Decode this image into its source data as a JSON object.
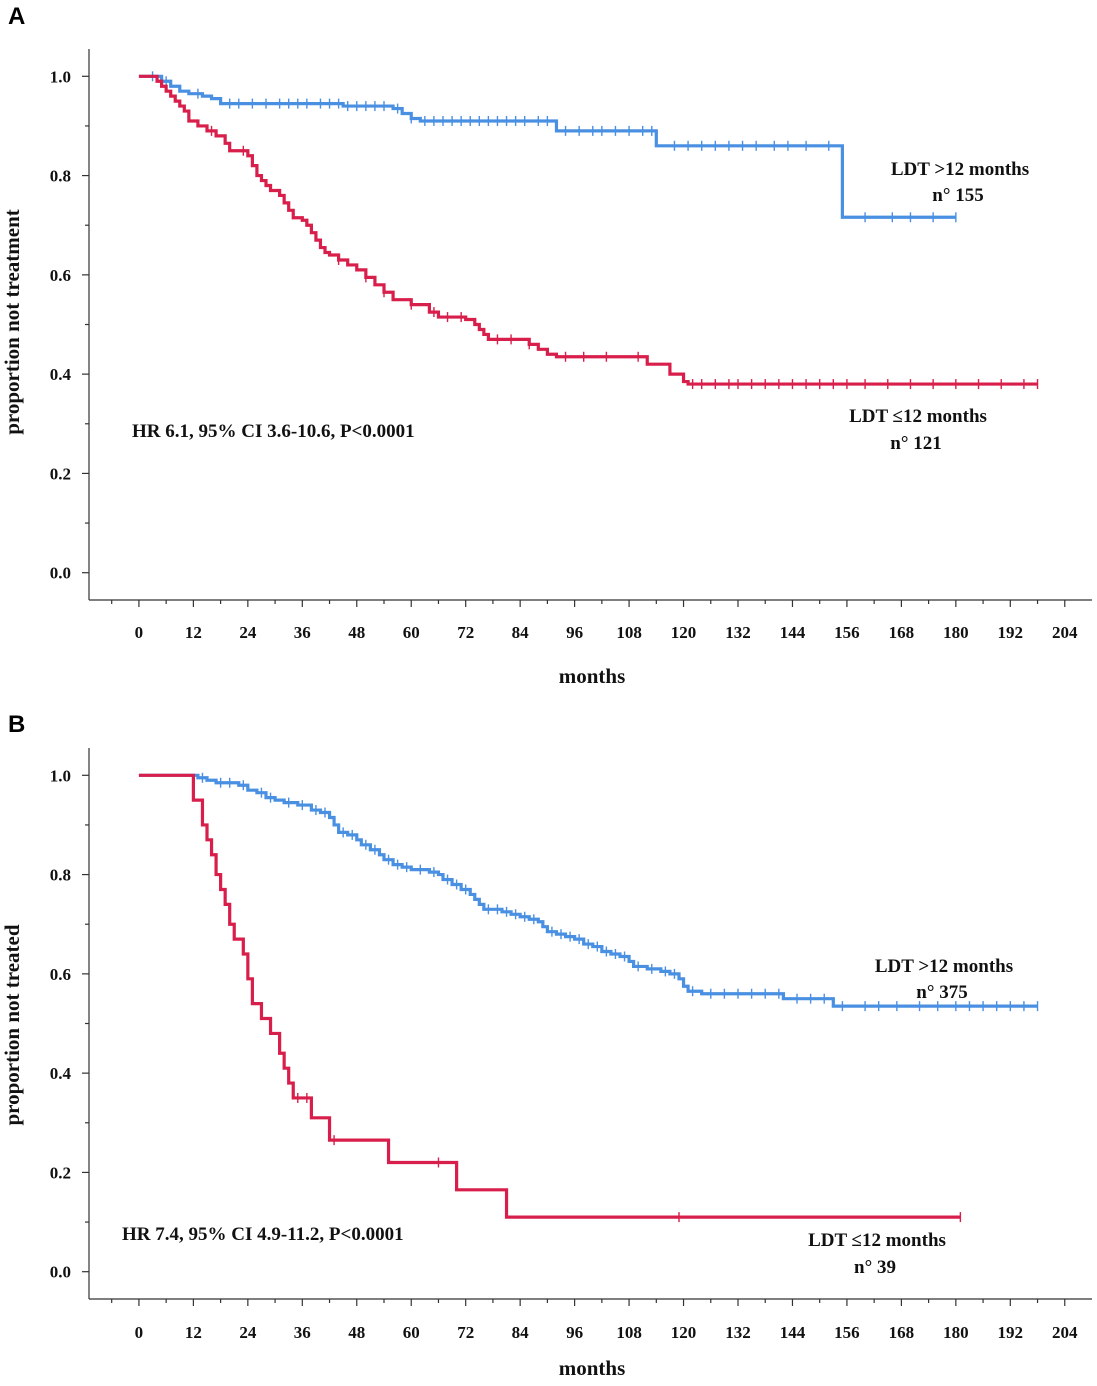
{
  "chart_data": [
    {
      "panel": "A",
      "type": "line",
      "subtype": "kaplan-meier",
      "xlabel": "months",
      "ylabel": "proportion not treatment",
      "xticks": [
        0,
        12,
        24,
        36,
        48,
        60,
        72,
        84,
        96,
        108,
        120,
        132,
        144,
        156,
        168,
        180,
        192,
        204
      ],
      "yticks": [
        "0.0",
        "0.2",
        "0.4",
        "0.6",
        "0.8",
        "1.0"
      ],
      "xlim": [
        -11,
        210
      ],
      "ylim": [
        -0.055,
        1.055
      ],
      "annotation": "HR 6.1, 95% CI 3.6-10.6, P<0.0001",
      "series": [
        {
          "name": "LDT >12 months",
          "label_lines": [
            "LDT >12 months",
            "n° 155"
          ],
          "color": "#4a90e2",
          "steps": [
            [
              0,
              1.0
            ],
            [
              5,
              0.99
            ],
            [
              7,
              0.98
            ],
            [
              9,
              0.97
            ],
            [
              11,
              0.965
            ],
            [
              14,
              0.96
            ],
            [
              16,
              0.955
            ],
            [
              18,
              0.945
            ],
            [
              45,
              0.94
            ],
            [
              56,
              0.935
            ],
            [
              58,
              0.925
            ],
            [
              60,
              0.915
            ],
            [
              62,
              0.91
            ],
            [
              92,
              0.89
            ],
            [
              114,
              0.86
            ],
            [
              155,
              0.716
            ],
            [
              180,
              0.716
            ]
          ],
          "censors": [
            3,
            6,
            13,
            20,
            22,
            25,
            28,
            31,
            33,
            35,
            37,
            40,
            42,
            44,
            46,
            48,
            50,
            52,
            54,
            57,
            60,
            63,
            65,
            67,
            69,
            71,
            73,
            75,
            77,
            79,
            81,
            83,
            85,
            88,
            90,
            94,
            97,
            100,
            102,
            105,
            108,
            111,
            113,
            118,
            121,
            124,
            127,
            130,
            133,
            136,
            140,
            143,
            147,
            152,
            160,
            166,
            170,
            175,
            180
          ]
        },
        {
          "name": "LDT ≤12 months",
          "label_lines": [
            "LDT ≤12 months",
            "n° 121"
          ],
          "color": "#d81e4a",
          "steps": [
            [
              0,
              1.0
            ],
            [
              4,
              0.99
            ],
            [
              5,
              0.98
            ],
            [
              6,
              0.97
            ],
            [
              7,
              0.96
            ],
            [
              8,
              0.95
            ],
            [
              9,
              0.94
            ],
            [
              10,
              0.93
            ],
            [
              11,
              0.91
            ],
            [
              13,
              0.9
            ],
            [
              15,
              0.89
            ],
            [
              17,
              0.88
            ],
            [
              19,
              0.865
            ],
            [
              20,
              0.85
            ],
            [
              24,
              0.84
            ],
            [
              25,
              0.82
            ],
            [
              26,
              0.8
            ],
            [
              27,
              0.79
            ],
            [
              28,
              0.78
            ],
            [
              29,
              0.77
            ],
            [
              31,
              0.76
            ],
            [
              32,
              0.745
            ],
            [
              33,
              0.73
            ],
            [
              34,
              0.715
            ],
            [
              36,
              0.71
            ],
            [
              37,
              0.7
            ],
            [
              38,
              0.685
            ],
            [
              39,
              0.67
            ],
            [
              40,
              0.655
            ],
            [
              41,
              0.645
            ],
            [
              42,
              0.64
            ],
            [
              44,
              0.63
            ],
            [
              46,
              0.62
            ],
            [
              48,
              0.61
            ],
            [
              50,
              0.595
            ],
            [
              52,
              0.58
            ],
            [
              54,
              0.565
            ],
            [
              56,
              0.55
            ],
            [
              60,
              0.54
            ],
            [
              64,
              0.525
            ],
            [
              66,
              0.515
            ],
            [
              72,
              0.51
            ],
            [
              74,
              0.5
            ],
            [
              75,
              0.49
            ],
            [
              76,
              0.48
            ],
            [
              77,
              0.47
            ],
            [
              86,
              0.46
            ],
            [
              88,
              0.45
            ],
            [
              90,
              0.44
            ],
            [
              92,
              0.435
            ],
            [
              112,
              0.42
            ],
            [
              117,
              0.4
            ],
            [
              120,
              0.385
            ],
            [
              121,
              0.38
            ],
            [
              198,
              0.38
            ]
          ],
          "censors": [
            16,
            23,
            44,
            50,
            54,
            60,
            65,
            68,
            71,
            79,
            82,
            86,
            94,
            98,
            103,
            110,
            122,
            124,
            127,
            130,
            132,
            135,
            138,
            141,
            144,
            147,
            150,
            153,
            156,
            160,
            165,
            170,
            175,
            180,
            185,
            190,
            195,
            198
          ]
        }
      ]
    },
    {
      "panel": "B",
      "type": "line",
      "subtype": "kaplan-meier",
      "xlabel": "months",
      "ylabel": "proportion not treated",
      "xticks": [
        0,
        12,
        24,
        36,
        48,
        60,
        72,
        84,
        96,
        108,
        120,
        132,
        144,
        156,
        168,
        180,
        192,
        204
      ],
      "yticks": [
        "0.0",
        "0.2",
        "0.4",
        "0.6",
        "0.8",
        "1.0"
      ],
      "xlim": [
        -11,
        210
      ],
      "ylim": [
        -0.055,
        1.055
      ],
      "annotation": "HR 7.4, 95% CI 4.9-11.2, P<0.0001",
      "series": [
        {
          "name": "LDT >12 months",
          "label_lines": [
            "LDT >12 months",
            "n° 375"
          ],
          "color": "#4a90e2",
          "steps": [
            [
              0,
              1.0
            ],
            [
              13,
              0.995
            ],
            [
              15,
              0.99
            ],
            [
              17,
              0.985
            ],
            [
              22,
              0.98
            ],
            [
              24,
              0.97
            ],
            [
              26,
              0.965
            ],
            [
              28,
              0.955
            ],
            [
              30,
              0.95
            ],
            [
              32,
              0.945
            ],
            [
              35,
              0.94
            ],
            [
              38,
              0.93
            ],
            [
              40,
              0.925
            ],
            [
              42,
              0.915
            ],
            [
              43,
              0.9
            ],
            [
              44,
              0.885
            ],
            [
              46,
              0.88
            ],
            [
              48,
              0.87
            ],
            [
              49,
              0.86
            ],
            [
              51,
              0.85
            ],
            [
              53,
              0.84
            ],
            [
              54,
              0.83
            ],
            [
              56,
              0.82
            ],
            [
              58,
              0.815
            ],
            [
              60,
              0.81
            ],
            [
              64,
              0.805
            ],
            [
              66,
              0.8
            ],
            [
              67,
              0.79
            ],
            [
              69,
              0.78
            ],
            [
              71,
              0.77
            ],
            [
              73,
              0.76
            ],
            [
              74,
              0.75
            ],
            [
              75,
              0.74
            ],
            [
              76,
              0.73
            ],
            [
              80,
              0.725
            ],
            [
              82,
              0.72
            ],
            [
              84,
              0.715
            ],
            [
              86,
              0.71
            ],
            [
              88,
              0.705
            ],
            [
              89,
              0.695
            ],
            [
              90,
              0.685
            ],
            [
              92,
              0.68
            ],
            [
              94,
              0.675
            ],
            [
              96,
              0.67
            ],
            [
              98,
              0.66
            ],
            [
              100,
              0.655
            ],
            [
              102,
              0.645
            ],
            [
              104,
              0.64
            ],
            [
              106,
              0.635
            ],
            [
              108,
              0.625
            ],
            [
              109,
              0.615
            ],
            [
              112,
              0.61
            ],
            [
              115,
              0.605
            ],
            [
              117,
              0.6
            ],
            [
              119,
              0.59
            ],
            [
              120,
              0.575
            ],
            [
              121,
              0.565
            ],
            [
              124,
              0.56
            ],
            [
              142,
              0.55
            ],
            [
              153,
              0.535
            ],
            [
              198,
              0.535
            ]
          ],
          "censors": [
            14,
            18,
            20,
            23,
            27,
            29,
            33,
            36,
            39,
            41,
            45,
            47,
            50,
            52,
            55,
            57,
            59,
            62,
            65,
            68,
            70,
            72,
            77,
            79,
            81,
            83,
            85,
            87,
            91,
            93,
            95,
            97,
            99,
            101,
            103,
            105,
            107,
            110,
            113,
            116,
            118,
            122,
            126,
            129,
            132,
            135,
            138,
            141,
            145,
            148,
            151,
            155,
            160,
            163,
            167,
            172,
            176,
            180,
            183,
            186,
            189,
            192,
            195,
            198
          ]
        },
        {
          "name": "LDT ≤12 months",
          "label_lines": [
            "LDT ≤12 months",
            "n° 39"
          ],
          "color": "#d81e4a",
          "steps": [
            [
              0,
              1.0
            ],
            [
              12,
              0.95
            ],
            [
              14,
              0.9
            ],
            [
              15,
              0.87
            ],
            [
              16,
              0.84
            ],
            [
              17,
              0.8
            ],
            [
              18,
              0.77
            ],
            [
              19,
              0.74
            ],
            [
              20,
              0.7
            ],
            [
              21,
              0.67
            ],
            [
              23,
              0.64
            ],
            [
              24,
              0.59
            ],
            [
              25,
              0.54
            ],
            [
              27,
              0.51
            ],
            [
              29,
              0.48
            ],
            [
              31,
              0.44
            ],
            [
              32,
              0.41
            ],
            [
              33,
              0.38
            ],
            [
              34,
              0.35
            ],
            [
              38,
              0.31
            ],
            [
              42,
              0.265
            ],
            [
              55,
              0.22
            ],
            [
              70,
              0.165
            ],
            [
              81,
              0.11
            ],
            [
              181,
              0.11
            ]
          ],
          "censors": [
            35,
            37,
            43,
            66,
            119,
            181
          ]
        }
      ]
    }
  ],
  "colors": {
    "blue": "#4a90e2",
    "red": "#d81e4a"
  }
}
